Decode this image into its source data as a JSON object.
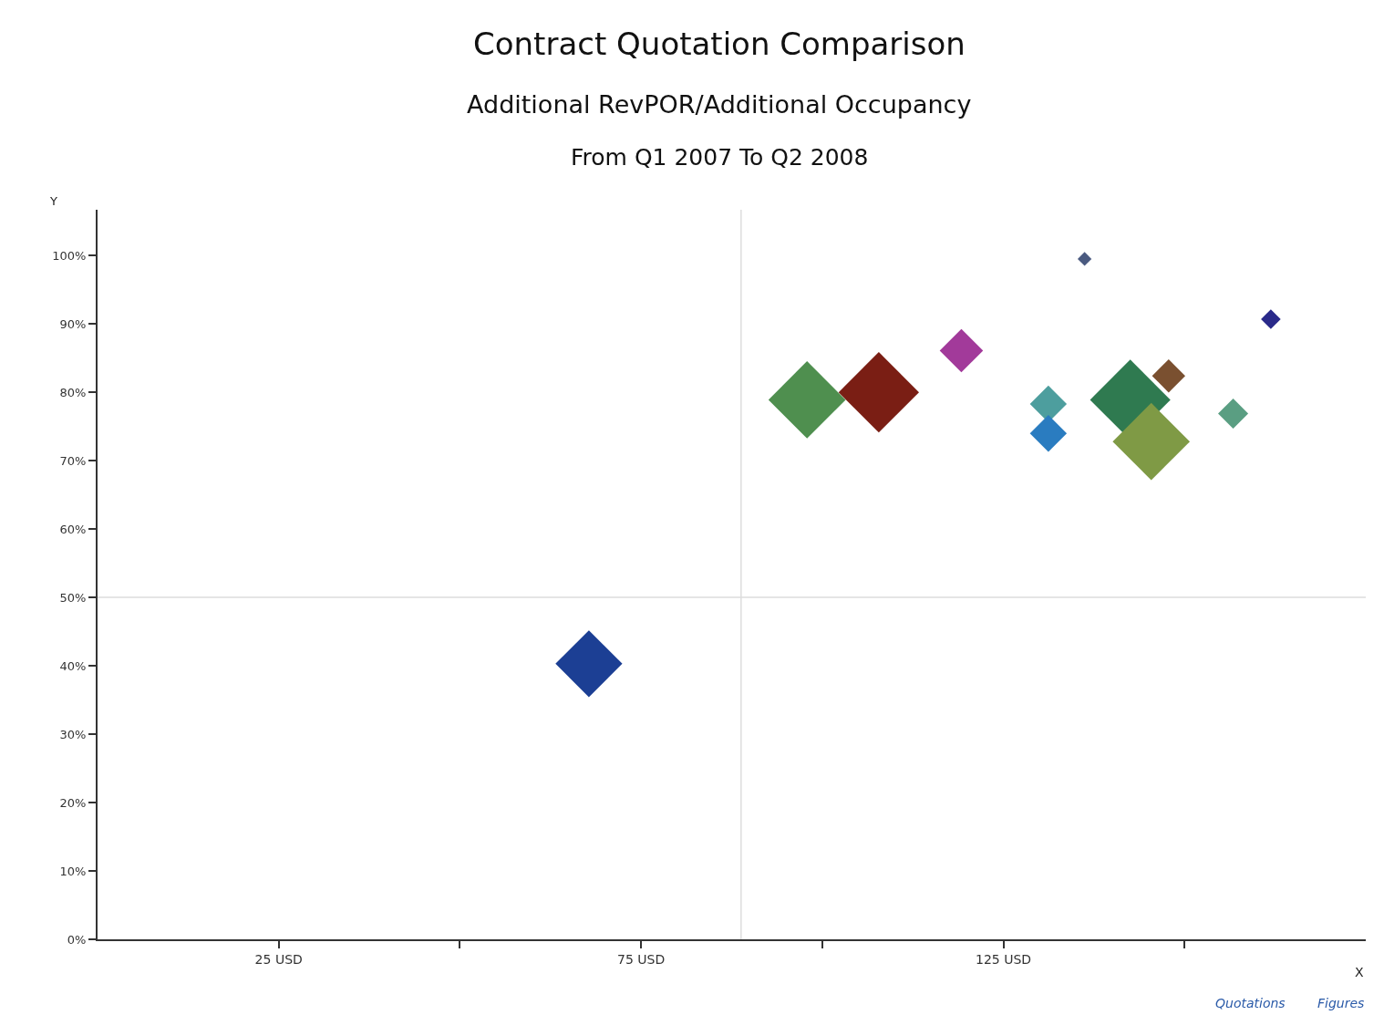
{
  "chart_data": {
    "type": "bubble",
    "title": "Contract Quotation Comparison",
    "subtitle": "Additional RevPOR/Additional Occupancy\nFrom Q1 2007 To Q2 2008",
    "xlabel": "X",
    "ylabel": "Y",
    "x": [
      67.8,
      97.9,
      107.8,
      119.2,
      131.2,
      131.2,
      136.2,
      142.5,
      145.4,
      147.8,
      156.7,
      161.9
    ],
    "values": [
      40.3,
      78.9,
      80,
      86.1,
      78.3,
      74,
      99.5,
      78.9,
      72.8,
      82.4,
      76.9,
      90.7
    ],
    "sizes": [
      0.69,
      0.92,
      1,
      0.29,
      0.21,
      0.21,
      0.03,
      1,
      0.92,
      0.17,
      0.14,
      0.06
    ],
    "colors": [
      "#1c3f94",
      "#4f8f4f",
      "#7a1e14",
      "#a23a9a",
      "#4d9e9e",
      "#2a7cc0",
      "#4a5a80",
      "#2f7a50",
      "#7f9a45",
      "#7a5030",
      "#5a9e82",
      "#2a2a8a"
    ],
    "marker": "diamond",
    "xlim": [
      0,
      175
    ],
    "xticks": [
      {
        "value": 25,
        "label": "25 USD"
      },
      {
        "value": 50,
        "label": null
      },
      {
        "value": 75,
        "label": "75 USD"
      },
      {
        "value": 100,
        "label": null
      },
      {
        "value": 125,
        "label": "125 USD"
      },
      {
        "value": 150,
        "label": null
      }
    ],
    "ylim": [
      0,
      106.7
    ],
    "yticks": [
      {
        "value": 0,
        "label": "0%"
      },
      {
        "value": 10,
        "label": "10%"
      },
      {
        "value": 20,
        "label": "20%"
      },
      {
        "value": 30,
        "label": "30%"
      },
      {
        "value": 40,
        "label": "40%"
      },
      {
        "value": 50,
        "label": "50%"
      },
      {
        "value": 60,
        "label": "60%"
      },
      {
        "value": 70,
        "label": "70%"
      },
      {
        "value": 80,
        "label": "80%"
      },
      {
        "value": 90,
        "label": "90%"
      },
      {
        "value": 100,
        "label": "100%"
      }
    ],
    "ref_lines": [
      {
        "axis": "x",
        "value": 88.8,
        "color": "#dddddd"
      },
      {
        "axis": "y",
        "value": 50,
        "color": "#dddddd"
      }
    ],
    "annotations": [
      "Quotations",
      "Figures"
    ]
  }
}
